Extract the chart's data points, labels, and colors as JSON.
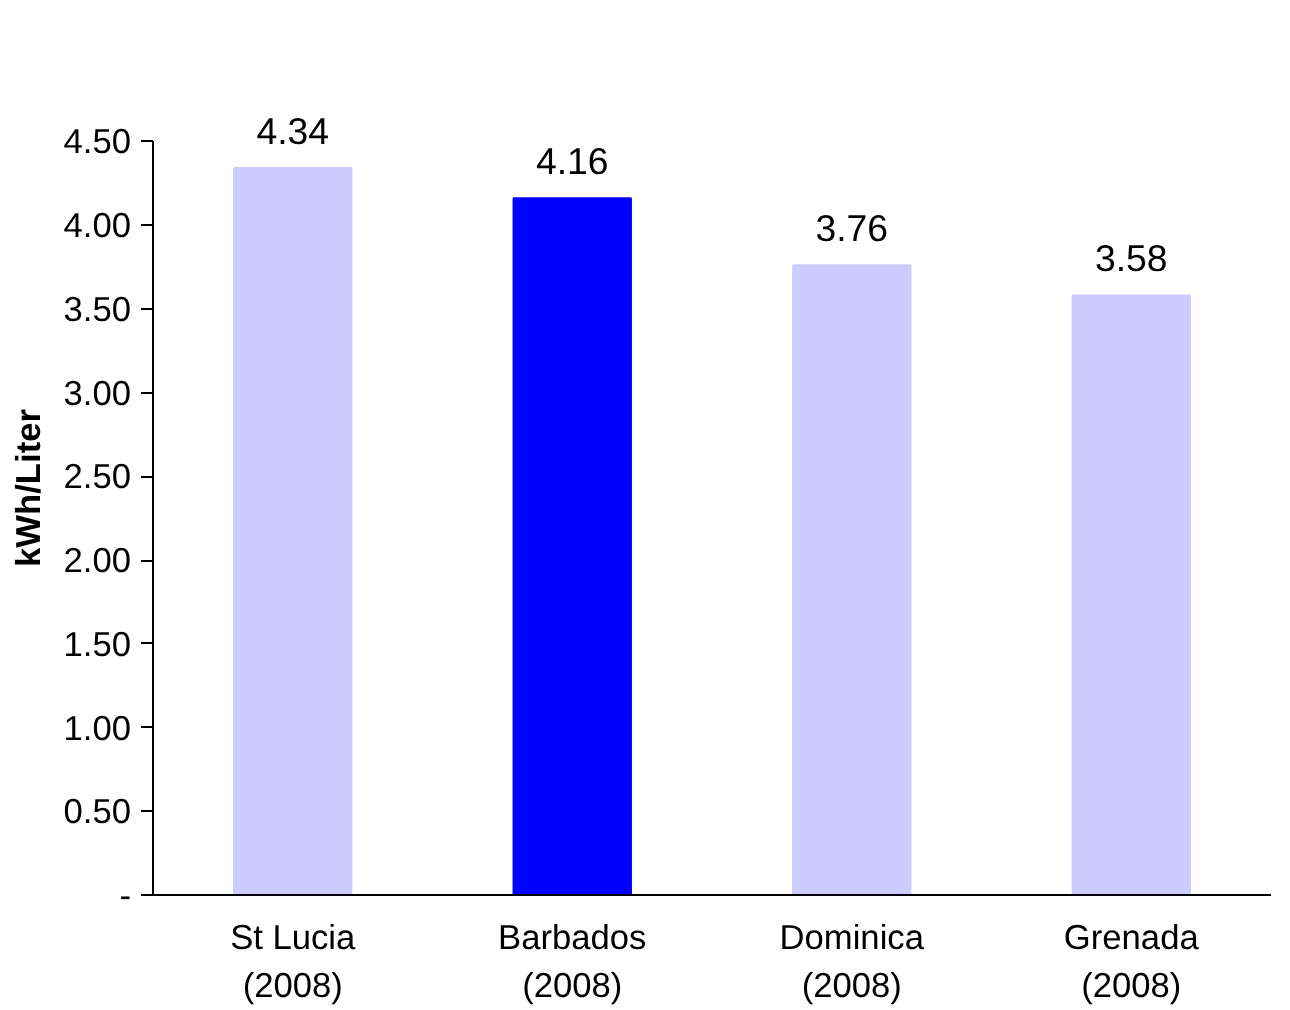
{
  "chart_data": {
    "type": "bar",
    "ylabel": "kWh/Liter",
    "categories": [
      "St Lucia\n(2008)",
      "Barbados\n(2008)",
      "Dominica\n(2008)",
      "Grenada\n(2008)"
    ],
    "values": [
      4.34,
      4.16,
      3.76,
      3.58
    ],
    "colors": [
      "#ccccff",
      "#0000ff",
      "#ccccff",
      "#ccccff"
    ],
    "ylim": [
      0,
      4.5
    ],
    "yticks": [
      {
        "value": 0,
        "label": "-"
      },
      {
        "value": 0.5,
        "label": "0.50"
      },
      {
        "value": 1,
        "label": "1.00"
      },
      {
        "value": 1.5,
        "label": "1.50"
      },
      {
        "value": 2,
        "label": "2.00"
      },
      {
        "value": 2.5,
        "label": "2.50"
      },
      {
        "value": 3,
        "label": "3.00"
      },
      {
        "value": 3.5,
        "label": "3.50"
      },
      {
        "value": 4,
        "label": "4.00"
      },
      {
        "value": 4.5,
        "label": "4.50"
      }
    ],
    "grid": false,
    "data_labels": true
  }
}
